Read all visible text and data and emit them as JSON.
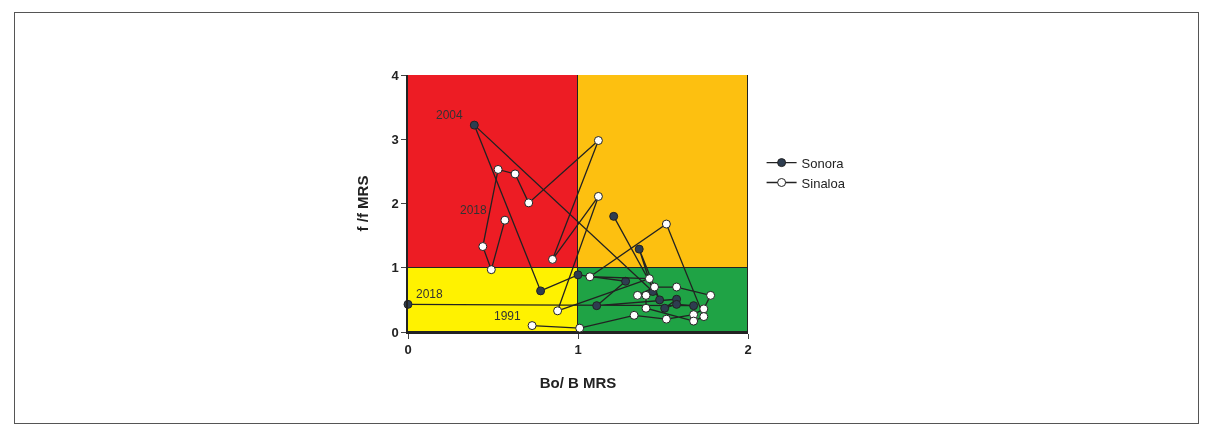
{
  "chart_data": {
    "type": "line",
    "xlabel": "Bo/ B MRS",
    "ylabel": "f /f MRS",
    "xlim": [
      0,
      2
    ],
    "xticks": [
      0,
      1,
      2
    ],
    "ylim": [
      0,
      4
    ],
    "yticks": [
      0,
      1,
      2,
      3,
      4
    ],
    "legend": "right",
    "marker": "circle",
    "line_style": "solid",
    "stacked": true,
    "series": [
      {
        "type": "bar",
        "x": [
          0.5,
          1.5
        ],
        "values": [
          1,
          1
        ],
        "colors": [
          "#fff200",
          "#1fa345"
        ]
      },
      {
        "type": "bar",
        "x": [
          0.5,
          1.5
        ],
        "values": [
          3,
          3
        ],
        "colors": [
          "#ed1c24",
          "#fdc010"
        ]
      },
      {
        "name": "Sonora",
        "color": "#2e3d50",
        "x": [
          1.21,
          1.48,
          1.36,
          1.44,
          0.39,
          0.78,
          1.0,
          1.28,
          1.11,
          1.58,
          1.51,
          1.58,
          1.68,
          0
        ],
        "values": [
          1.8,
          0.5,
          1.29,
          0.63,
          3.22,
          0.64,
          0.89,
          0.79,
          0.41,
          0.51,
          0.37,
          0.43,
          0.41,
          0.43
        ]
      },
      {
        "name": "Sinaloa",
        "color": "#ffffff",
        "x": [
          0.73,
          1.01,
          1.33,
          1.52,
          1.68,
          1.74,
          1.78,
          1.58,
          1.45,
          1.35,
          1.4,
          1.4,
          1.68,
          1.74,
          1.52,
          1.07,
          1.42,
          0.88,
          1.12,
          0.85,
          1.12,
          0.71,
          0.63,
          0.53,
          0.44,
          0.49,
          0.57
        ],
        "values": [
          0.1,
          0.06,
          0.26,
          0.2,
          0.27,
          0.36,
          0.57,
          0.7,
          0.7,
          0.57,
          0.57,
          0.37,
          0.17,
          0.24,
          1.68,
          0.86,
          0.83,
          0.33,
          2.11,
          1.13,
          2.98,
          2.01,
          2.46,
          2.53,
          1.33,
          0.97,
          1.74
        ]
      }
    ],
    "annotations": [
      {
        "text": "2004",
        "x": 0.39,
        "y": 3.22
      },
      {
        "text": "2018",
        "x": 0.53,
        "y": 1.74
      },
      {
        "text": "2018",
        "x": 0.27,
        "y": 0.43
      },
      {
        "text": "1991",
        "x": 0.73,
        "y": 0.1
      }
    ]
  }
}
